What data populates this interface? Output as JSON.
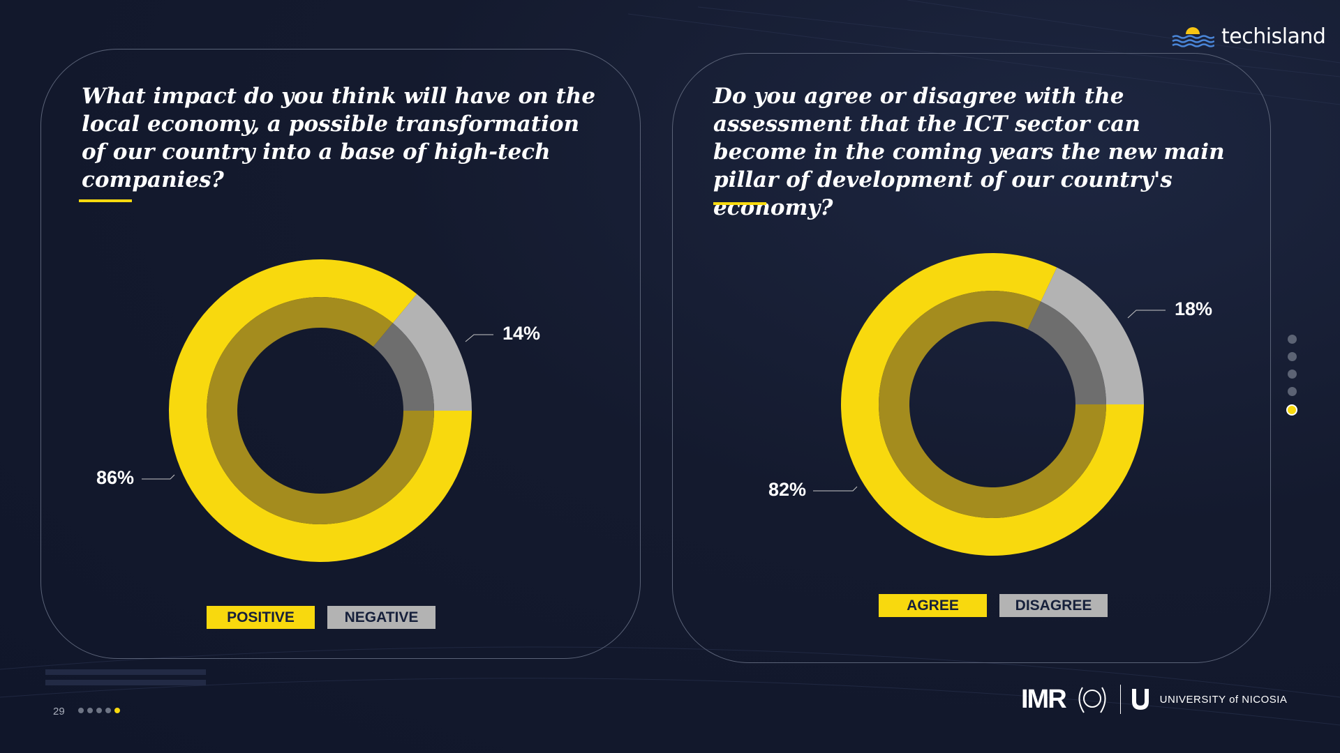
{
  "brand": {
    "name": "techisland"
  },
  "page": {
    "number": "29"
  },
  "footer": {
    "imr": "IMR",
    "university": "UNIVERSITY of NICOSIA"
  },
  "colors": {
    "yellow": "#f8d90e",
    "grey": "#b3b3b3",
    "background": "#141a2e"
  },
  "chart_data": [
    {
      "type": "pie",
      "title": "What impact do you think will have on the local economy, a possible transformation of our country into a base of high-tech companies?",
      "categories": [
        "POSITIVE",
        "NEGATIVE"
      ],
      "values": [
        86,
        14
      ],
      "labels": [
        "86%",
        "14%"
      ],
      "legend": "bottom"
    },
    {
      "type": "pie",
      "title": "Do you agree or disagree with the assessment that the ICT sector can become in the coming years the new main pillar of development of our country's economy?",
      "categories": [
        "AGREE",
        "DISAGREE"
      ],
      "values": [
        82,
        18
      ],
      "labels": [
        "82%",
        "18%"
      ],
      "legend": "bottom"
    }
  ]
}
